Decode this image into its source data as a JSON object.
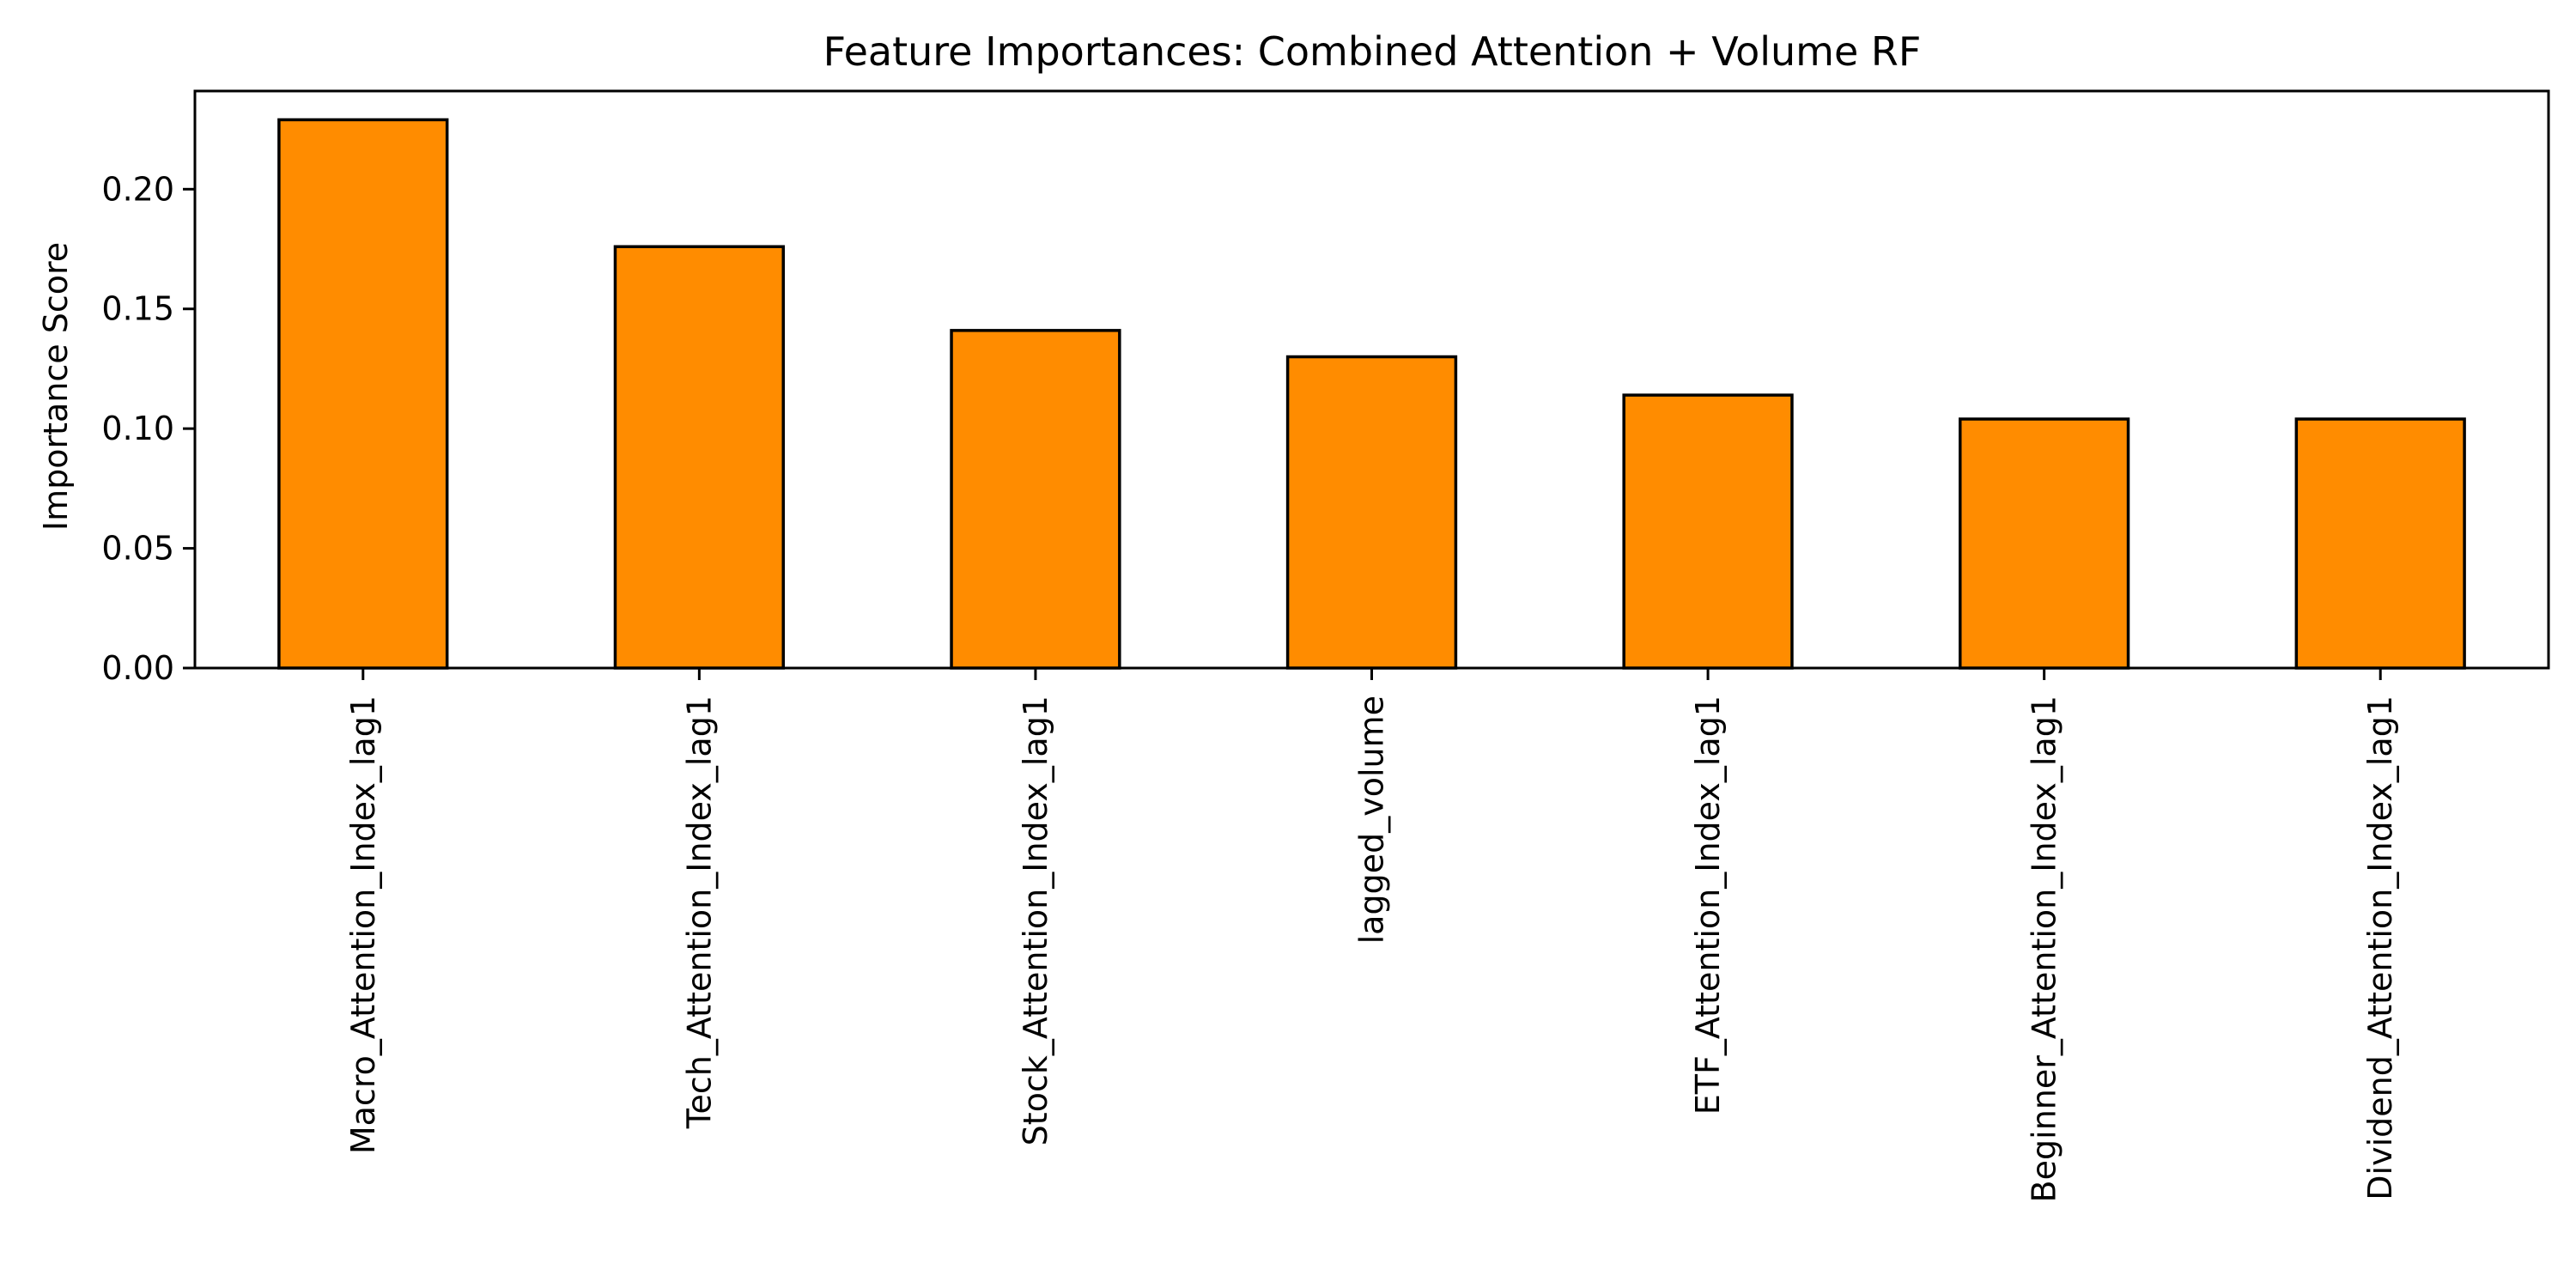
{
  "chart_data": {
    "type": "bar",
    "title": "Feature Importances: Combined Attention + Volume RF",
    "xlabel": "",
    "ylabel": "Importance Score",
    "categories": [
      "Macro_Attention_Index_lag1",
      "Tech_Attention_Index_lag1",
      "Stock_Attention_Index_lag1",
      "lagged_volume",
      "ETF_Attention_Index_lag1",
      "Beginner_Attention_Index_lag1",
      "Dividend_Attention_Index_lag1"
    ],
    "values": [
      0.229,
      0.176,
      0.141,
      0.13,
      0.114,
      0.104,
      0.104
    ],
    "ylim": [
      0,
      0.241
    ],
    "yticks": [
      0.0,
      0.05,
      0.1,
      0.15,
      0.2
    ],
    "ytick_labels": [
      "0.00",
      "0.05",
      "0.10",
      "0.15",
      "0.20"
    ],
    "grid": false,
    "legend": "none",
    "colors": {
      "bar_fill": "#ff8c00",
      "bar_edge": "#000000",
      "axis": "#000000",
      "background": "#ffffff"
    }
  }
}
